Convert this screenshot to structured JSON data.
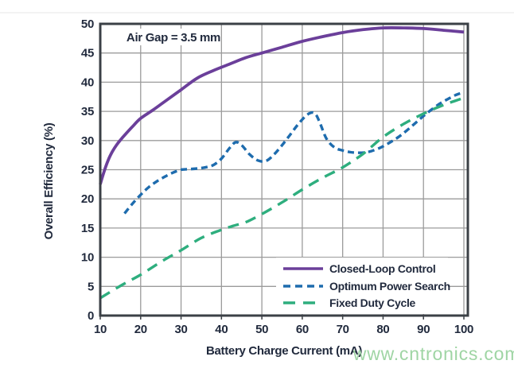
{
  "page": {
    "watermark": "www.cntronics.com",
    "watermark_color": "#9fd5a4"
  },
  "chart_data": {
    "type": "line",
    "annotation": "Air Gap = 3.5 mm",
    "xlabel": "Battery Charge Current (mA)",
    "ylabel": "Overall Efficiency (%)",
    "xlim": [
      10,
      100
    ],
    "ylim": [
      0,
      50
    ],
    "x_ticks": [
      10,
      20,
      30,
      40,
      50,
      60,
      70,
      80,
      90,
      100
    ],
    "y_ticks": [
      0,
      5,
      10,
      15,
      20,
      25,
      30,
      35,
      40,
      45,
      50
    ],
    "grid": true,
    "legend_position": "inside-bottom-right",
    "colors": {
      "axis_text": "#212a3d",
      "grid": "#9b9b9b",
      "border": "#3b4046",
      "background": "#ffffff"
    },
    "series": [
      {
        "name": "Closed-Loop Control",
        "color": "#6b3f9a",
        "dash": "solid",
        "points": [
          [
            10,
            22.5
          ],
          [
            11,
            24.8
          ],
          [
            12,
            26.7
          ],
          [
            13,
            28.1
          ],
          [
            14,
            29.2
          ],
          [
            15,
            30.1
          ],
          [
            16,
            30.9
          ],
          [
            18,
            32.4
          ],
          [
            20,
            33.8
          ],
          [
            23,
            35.2
          ],
          [
            26,
            36.7
          ],
          [
            30,
            38.7
          ],
          [
            34,
            40.7
          ],
          [
            38,
            42.0
          ],
          [
            42,
            43.1
          ],
          [
            46,
            44.2
          ],
          [
            50,
            45.0
          ],
          [
            55,
            46.0
          ],
          [
            60,
            47.0
          ],
          [
            65,
            47.8
          ],
          [
            70,
            48.5
          ],
          [
            75,
            49.0
          ],
          [
            80,
            49.3
          ],
          [
            85,
            49.3
          ],
          [
            90,
            49.2
          ],
          [
            95,
            48.9
          ],
          [
            100,
            48.6
          ]
        ]
      },
      {
        "name": "Optimum Power Search",
        "color": "#1e6cae",
        "dash": "short",
        "points": [
          [
            16,
            17.5
          ],
          [
            18,
            19.2
          ],
          [
            20,
            20.7
          ],
          [
            22,
            22.0
          ],
          [
            24,
            23.0
          ],
          [
            26,
            23.8
          ],
          [
            28,
            24.5
          ],
          [
            30,
            25.0
          ],
          [
            32,
            25.1
          ],
          [
            34,
            25.2
          ],
          [
            36,
            25.4
          ],
          [
            38,
            25.8
          ],
          [
            40,
            26.9
          ],
          [
            42,
            28.7
          ],
          [
            43.5,
            29.7
          ],
          [
            45,
            29.2
          ],
          [
            47,
            27.6
          ],
          [
            49,
            26.6
          ],
          [
            51,
            26.5
          ],
          [
            53,
            27.6
          ],
          [
            55,
            29.2
          ],
          [
            57,
            31.0
          ],
          [
            59,
            32.8
          ],
          [
            61,
            34.3
          ],
          [
            62.5,
            34.8
          ],
          [
            63.5,
            34.3
          ],
          [
            64.5,
            32.8
          ],
          [
            66,
            30.3
          ],
          [
            68,
            28.8
          ],
          [
            70,
            28.3
          ],
          [
            72,
            28.0
          ],
          [
            74,
            27.9
          ],
          [
            76,
            28.0
          ],
          [
            78,
            28.4
          ],
          [
            80,
            29.0
          ],
          [
            82,
            29.8
          ],
          [
            84,
            30.7
          ],
          [
            86,
            31.8
          ],
          [
            88,
            33.0
          ],
          [
            90,
            34.2
          ],
          [
            92,
            35.3
          ],
          [
            94,
            36.3
          ],
          [
            96,
            37.1
          ],
          [
            98,
            37.8
          ],
          [
            100,
            38.3
          ]
        ]
      },
      {
        "name": "Fixed Duty Cycle",
        "color": "#2eae7e",
        "dash": "long",
        "points": [
          [
            10,
            3.0
          ],
          [
            15,
            5.1
          ],
          [
            20,
            7.0
          ],
          [
            25,
            9.2
          ],
          [
            30,
            11.2
          ],
          [
            35,
            13.3
          ],
          [
            40,
            14.7
          ],
          [
            43,
            15.4
          ],
          [
            46,
            16.0
          ],
          [
            50,
            17.4
          ],
          [
            55,
            19.4
          ],
          [
            60,
            21.6
          ],
          [
            65,
            23.6
          ],
          [
            70,
            25.4
          ],
          [
            75,
            27.7
          ],
          [
            80,
            30.6
          ],
          [
            85,
            32.8
          ],
          [
            90,
            34.6
          ],
          [
            95,
            36.1
          ],
          [
            100,
            37.3
          ]
        ]
      }
    ]
  }
}
